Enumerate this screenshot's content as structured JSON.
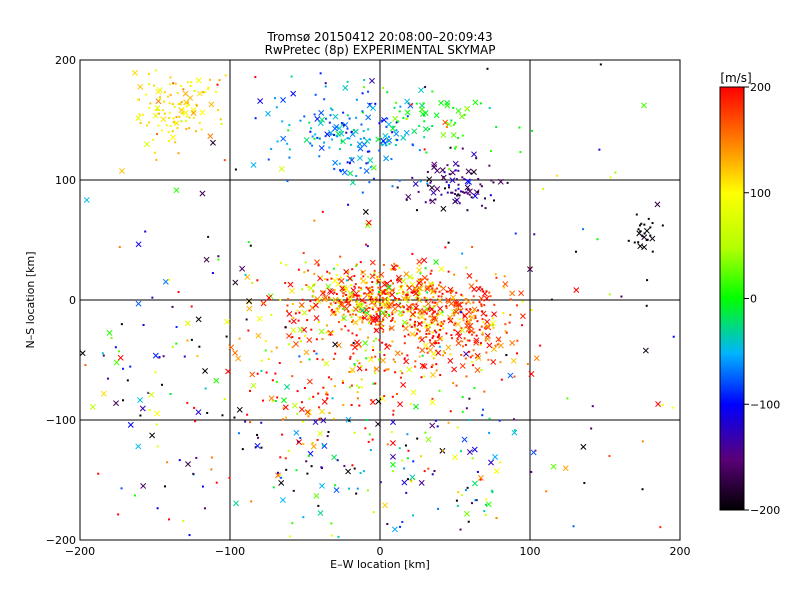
{
  "chart_data": {
    "type": "scatter",
    "title": "Tromsø 20150412 20:08:00–20:09:43",
    "subtitle": "RwPretec (8p) EXPERIMENTAL SKYMAP",
    "xlabel": "E–W location [km]",
    "ylabel": "N–S location [km]",
    "xlim": [
      -200,
      200
    ],
    "ylim": [
      -200,
      200
    ],
    "x_ticks": [
      "−200",
      "−100",
      "0",
      "100",
      "200"
    ],
    "y_ticks": [
      "−200",
      "−100",
      "0",
      "100",
      "200"
    ],
    "grid": true,
    "colorbar": {
      "label": "[m/s]",
      "range": [
        -200,
        200
      ],
      "ticks": [
        "200",
        "100",
        "0",
        "−100",
        "−200"
      ]
    },
    "clusters": [
      {
        "cx": -135,
        "cy": 160,
        "sx": 14,
        "sy": 18,
        "n": 120,
        "vel": 110,
        "vspread": 20
      },
      {
        "cx": -20,
        "cy": 140,
        "sx": 25,
        "sy": 20,
        "n": 180,
        "vel": -60,
        "vspread": 30
      },
      {
        "cx": 40,
        "cy": 150,
        "sx": 20,
        "sy": 12,
        "n": 50,
        "vel": 0,
        "vspread": 20
      },
      {
        "cx": 50,
        "cy": 95,
        "sx": 15,
        "sy": 10,
        "n": 90,
        "vel": -160,
        "vspread": 25
      },
      {
        "cx": 178,
        "cy": 55,
        "sx": 5,
        "sy": 8,
        "n": 25,
        "vel": -200,
        "vspread": 10
      },
      {
        "cx": 0,
        "cy": 0,
        "sx": 30,
        "sy": 14,
        "n": 500,
        "vel": 150,
        "vspread": 70
      },
      {
        "cx": 45,
        "cy": -20,
        "sx": 25,
        "sy": 20,
        "n": 300,
        "vel": 180,
        "vspread": 40
      },
      {
        "cx": -20,
        "cy": -60,
        "sx": 45,
        "sy": 35,
        "n": 250,
        "vel": 160,
        "vspread": 90
      },
      {
        "cx": 0,
        "cy": -140,
        "sx": 60,
        "sy": 30,
        "n": 150,
        "vel": -80,
        "vspread": 120
      },
      {
        "cx": -150,
        "cy": -80,
        "sx": 35,
        "sy": 60,
        "n": 80,
        "vel": -40,
        "vspread": 150
      },
      {
        "cx": 0,
        "cy": 0,
        "sx": 130,
        "sy": 130,
        "n": 200,
        "vel": 0,
        "vspread": 200
      }
    ]
  }
}
